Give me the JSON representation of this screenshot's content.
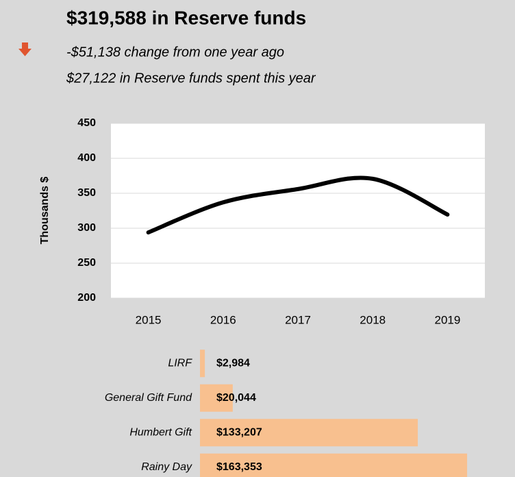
{
  "header": {
    "title": "$319,588 in Reserve funds",
    "change": "-$51,138 change from one year ago",
    "spent": "$27,122 in Reserve funds spent this year"
  },
  "chart_data": [
    {
      "type": "line",
      "y_label": "Thousands $",
      "categories": [
        "2015",
        "2016",
        "2017",
        "2018",
        "2019"
      ],
      "series": [
        {
          "name": "Reserve funds",
          "color": "#000000",
          "values": [
            294,
            337,
            356,
            370.726,
            319.588
          ]
        }
      ],
      "ylim": [
        200,
        450
      ],
      "yticks": [
        200,
        250,
        300,
        350,
        400,
        450
      ],
      "grid": true,
      "smooth": true
    },
    {
      "type": "hbar",
      "categories": [
        "LIRF",
        "General Gift Fund",
        "Humbert Gift",
        "Rainy Day"
      ],
      "values": [
        2984,
        20044,
        133207,
        163353
      ],
      "value_labels": [
        "$2,984",
        "$20,044",
        "$133,207",
        "$163,353"
      ],
      "color": "#f8c08f",
      "xlim": [
        0,
        165000
      ]
    }
  ]
}
